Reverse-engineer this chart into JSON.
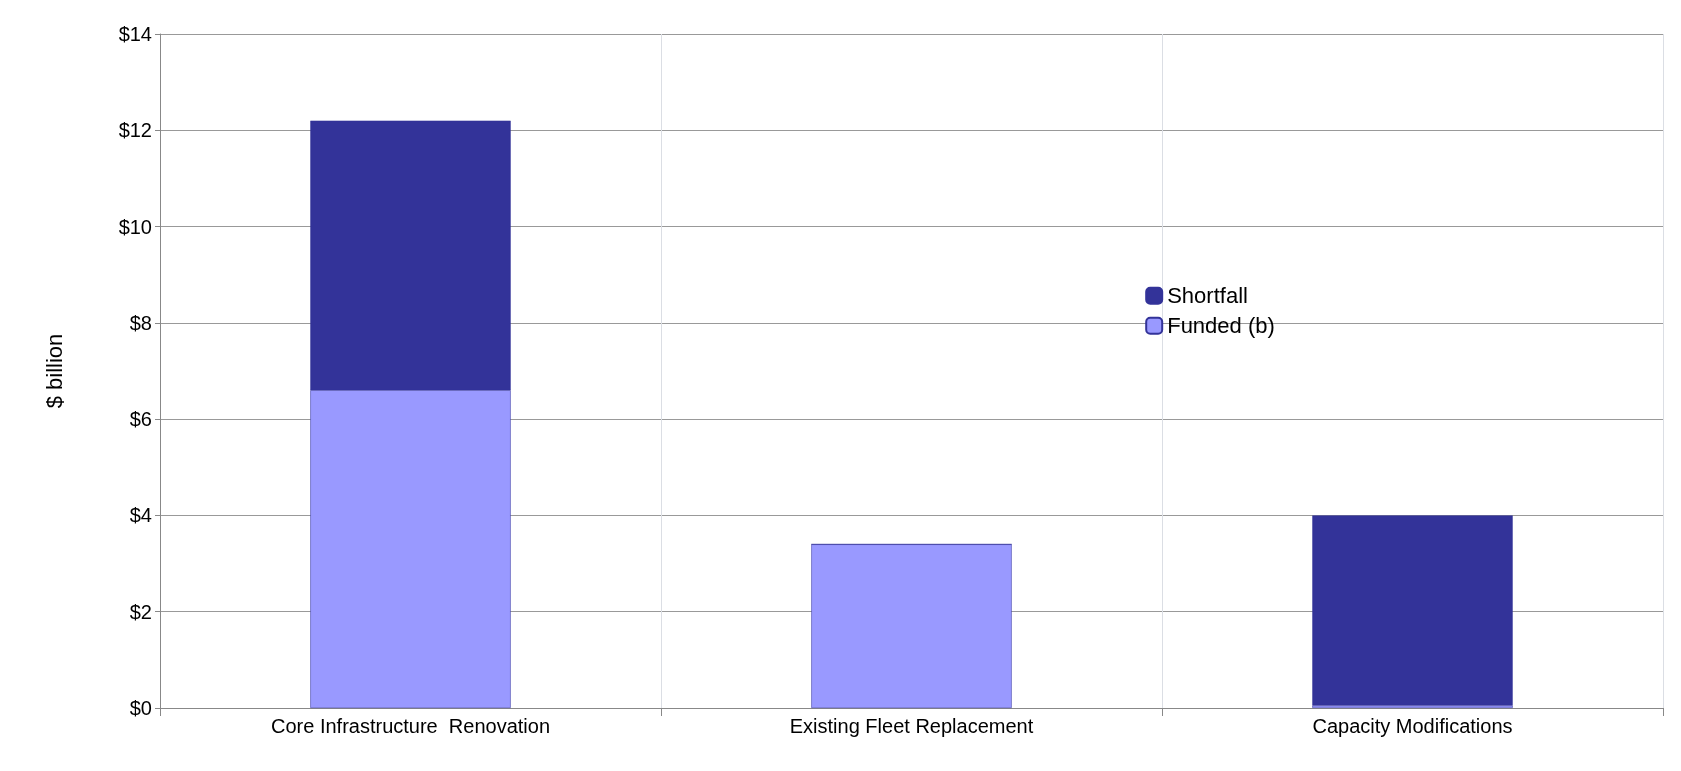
{
  "chart_data": {
    "type": "bar",
    "ylabel": "$ billion",
    "categories": [
      "Core Infrastructure  Renovation",
      "Existing Fleet Replacement",
      "Capacity Modifications"
    ],
    "stacked": true,
    "series": [
      {
        "name": "Funded (b)",
        "color": "#9999ff",
        "values": [
          6.6,
          3.4,
          0.05
        ]
      },
      {
        "name": "Shortfall",
        "color": "#333399",
        "values": [
          5.6,
          0,
          3.95
        ]
      }
    ],
    "ylim": [
      0,
      14
    ],
    "yticks": [
      {
        "value": 0,
        "label": "$0"
      },
      {
        "value": 2,
        "label": "$2"
      },
      {
        "value": 4,
        "label": "$4"
      },
      {
        "value": 6,
        "label": "$6"
      },
      {
        "value": 8,
        "label": "$8"
      },
      {
        "value": 10,
        "label": "$10"
      },
      {
        "value": 12,
        "label": "$12"
      },
      {
        "value": 14,
        "label": "$14"
      }
    ],
    "grid": true,
    "legend": "right"
  }
}
